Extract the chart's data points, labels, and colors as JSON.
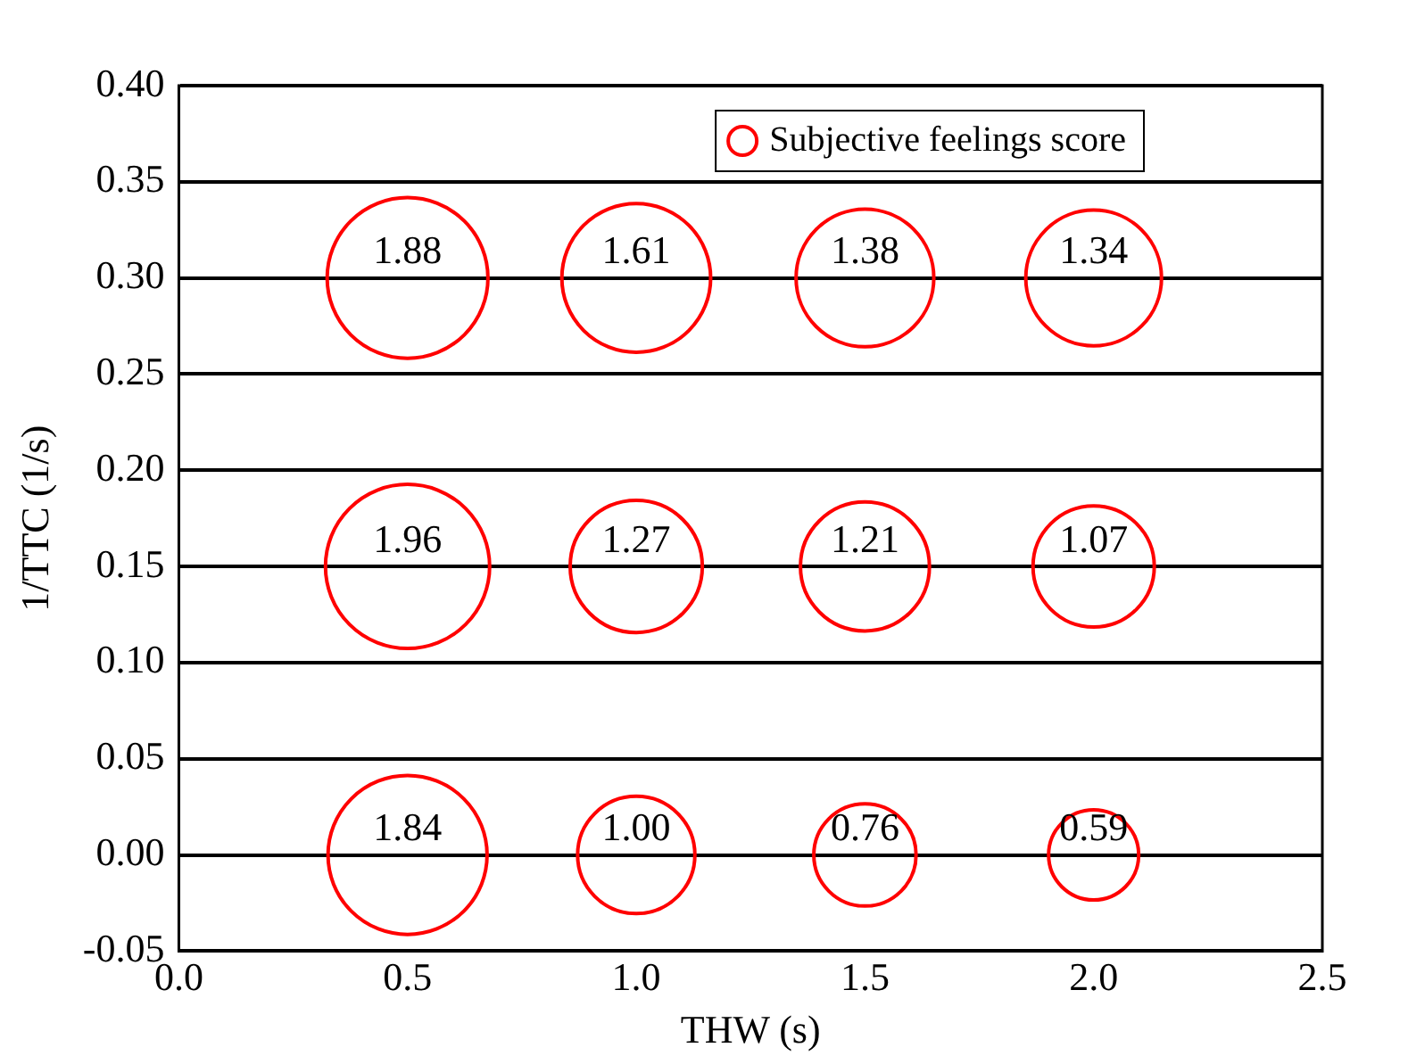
{
  "chart_data": {
    "type": "bubble",
    "xlabel": "THW (s)",
    "ylabel": "1/TTC (1/s)",
    "xlim": [
      0,
      2.5
    ],
    "xticks": [
      {
        "value": 0,
        "label": "0.0"
      },
      {
        "value": 0.5,
        "label": "0.5"
      },
      {
        "value": 1,
        "label": "1.0"
      },
      {
        "value": 1.5,
        "label": "1.5"
      },
      {
        "value": 2,
        "label": "2.0"
      },
      {
        "value": 2.5,
        "label": "2.5"
      }
    ],
    "ylim": [
      -0.05,
      0.4
    ],
    "yticks": [
      {
        "value": -0.05,
        "label": "-0.05"
      },
      {
        "value": 0,
        "label": "0.00"
      },
      {
        "value": 0.05,
        "label": "0.05"
      },
      {
        "value": 0.1,
        "label": "0.10"
      },
      {
        "value": 0.15,
        "label": "0.15"
      },
      {
        "value": 0.2,
        "label": "0.20"
      },
      {
        "value": 0.25,
        "label": "0.25"
      },
      {
        "value": 0.3,
        "label": "0.30"
      },
      {
        "value": 0.35,
        "label": "0.35"
      },
      {
        "value": 0.4,
        "label": "0.40"
      }
    ],
    "grid": "y",
    "legend": "top right",
    "marker": "circle",
    "series": [
      {
        "name": "Subjective feelings score",
        "color": "#ff0000",
        "x": [
          0.5,
          1,
          1.5,
          2,
          0.5,
          1,
          1.5,
          2,
          0.5,
          1,
          1.5,
          2
        ],
        "values": [
          0.3,
          0.3,
          0.3,
          0.3,
          0.15,
          0.15,
          0.15,
          0.15,
          0,
          0,
          0,
          0
        ],
        "sizes": [
          1.88,
          1.61,
          1.38,
          1.34,
          1.96,
          1.27,
          1.21,
          1.07,
          1.84,
          1.0,
          0.76,
          0.59
        ],
        "value_labels": [
          "1.88",
          "1.61",
          "1.38",
          "1.34",
          "1.96",
          "1.27",
          "1.21",
          "1.07",
          "1.84",
          "1.00",
          "0.76",
          "0.59"
        ]
      }
    ]
  }
}
